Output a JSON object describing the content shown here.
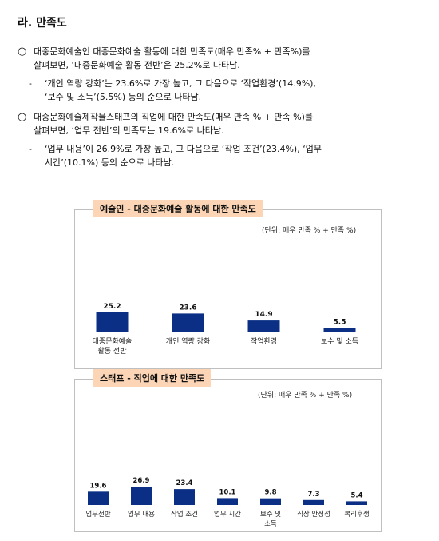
{
  "section": {
    "title": "라. 만족도"
  },
  "paragraphs": [
    {
      "mark": "○",
      "lines": [
        "대중문화예술인 대중문화예술 활동에 대한 만족도(매우 만족% + 만족%)를",
        "살펴보면, ‘대중문화예술 활동 전반’은 25.2%로 나타남."
      ]
    },
    {
      "mark": "-",
      "lines": [
        "‘개인 역량 강화’는 23.6%로 가장 높고, 그 다음으로 ‘작업환경’(14.9%),",
        "‘보수 및 소득’(5.5%) 등의 순으로 나타남."
      ]
    },
    {
      "mark": "○",
      "lines": [
        "대중문화예술제작물스태프의 직업에 대한 만족도(매우 만족 % + 만족 %)를",
        "살펴보면, ‘업무 전반’의 만족도는 19.6%로 나타남."
      ]
    },
    {
      "mark": "-",
      "lines": [
        "‘업무 내용’이 26.9%로 가장 높고, 그 다음으로 ‘작업 조건’(23.4%), ‘업무",
        "시간’(10.1%) 등의 순으로 나타남."
      ]
    }
  ],
  "colors": {
    "bar": "#0b2f84",
    "badge": "#fbd5b5",
    "border": "#bfbfbf"
  },
  "chart_data": [
    {
      "type": "bar",
      "title": "예술인 - 대중문화예술 활동에 대한 만족도",
      "unit": "(단위: 매우 만족 % + 만족 %)",
      "categories": [
        [
          "대중문화예술",
          "활동 전반"
        ],
        [
          "개인 역량 강화"
        ],
        [
          "작업환경"
        ],
        [
          "보수 및 소득"
        ]
      ],
      "values": [
        25.2,
        23.6,
        14.9,
        5.5
      ],
      "value_labels": [
        "25.2",
        "23.6",
        "14.9",
        "5.5"
      ],
      "ylim": [
        0,
        100
      ],
      "grid": false,
      "legend": "none"
    },
    {
      "type": "bar",
      "title": "스태프 - 직업에 대한 만족도",
      "unit": "(단위: 매우 만족 % + 만족 %)",
      "categories": [
        [
          "업무전반"
        ],
        [
          "업무 내용"
        ],
        [
          "작업 조건"
        ],
        [
          "업무 시간"
        ],
        [
          "보수 및",
          "소득"
        ],
        [
          "직장 안정성"
        ],
        [
          "복리후생"
        ]
      ],
      "values": [
        19.6,
        26.9,
        23.4,
        10.1,
        9.8,
        7.3,
        5.4
      ],
      "value_labels": [
        "19.6",
        "26.9",
        "23.4",
        "10.1",
        "9.8",
        "7.3",
        "5.4"
      ],
      "ylim": [
        0,
        100
      ],
      "grid": false,
      "legend": "none"
    }
  ]
}
